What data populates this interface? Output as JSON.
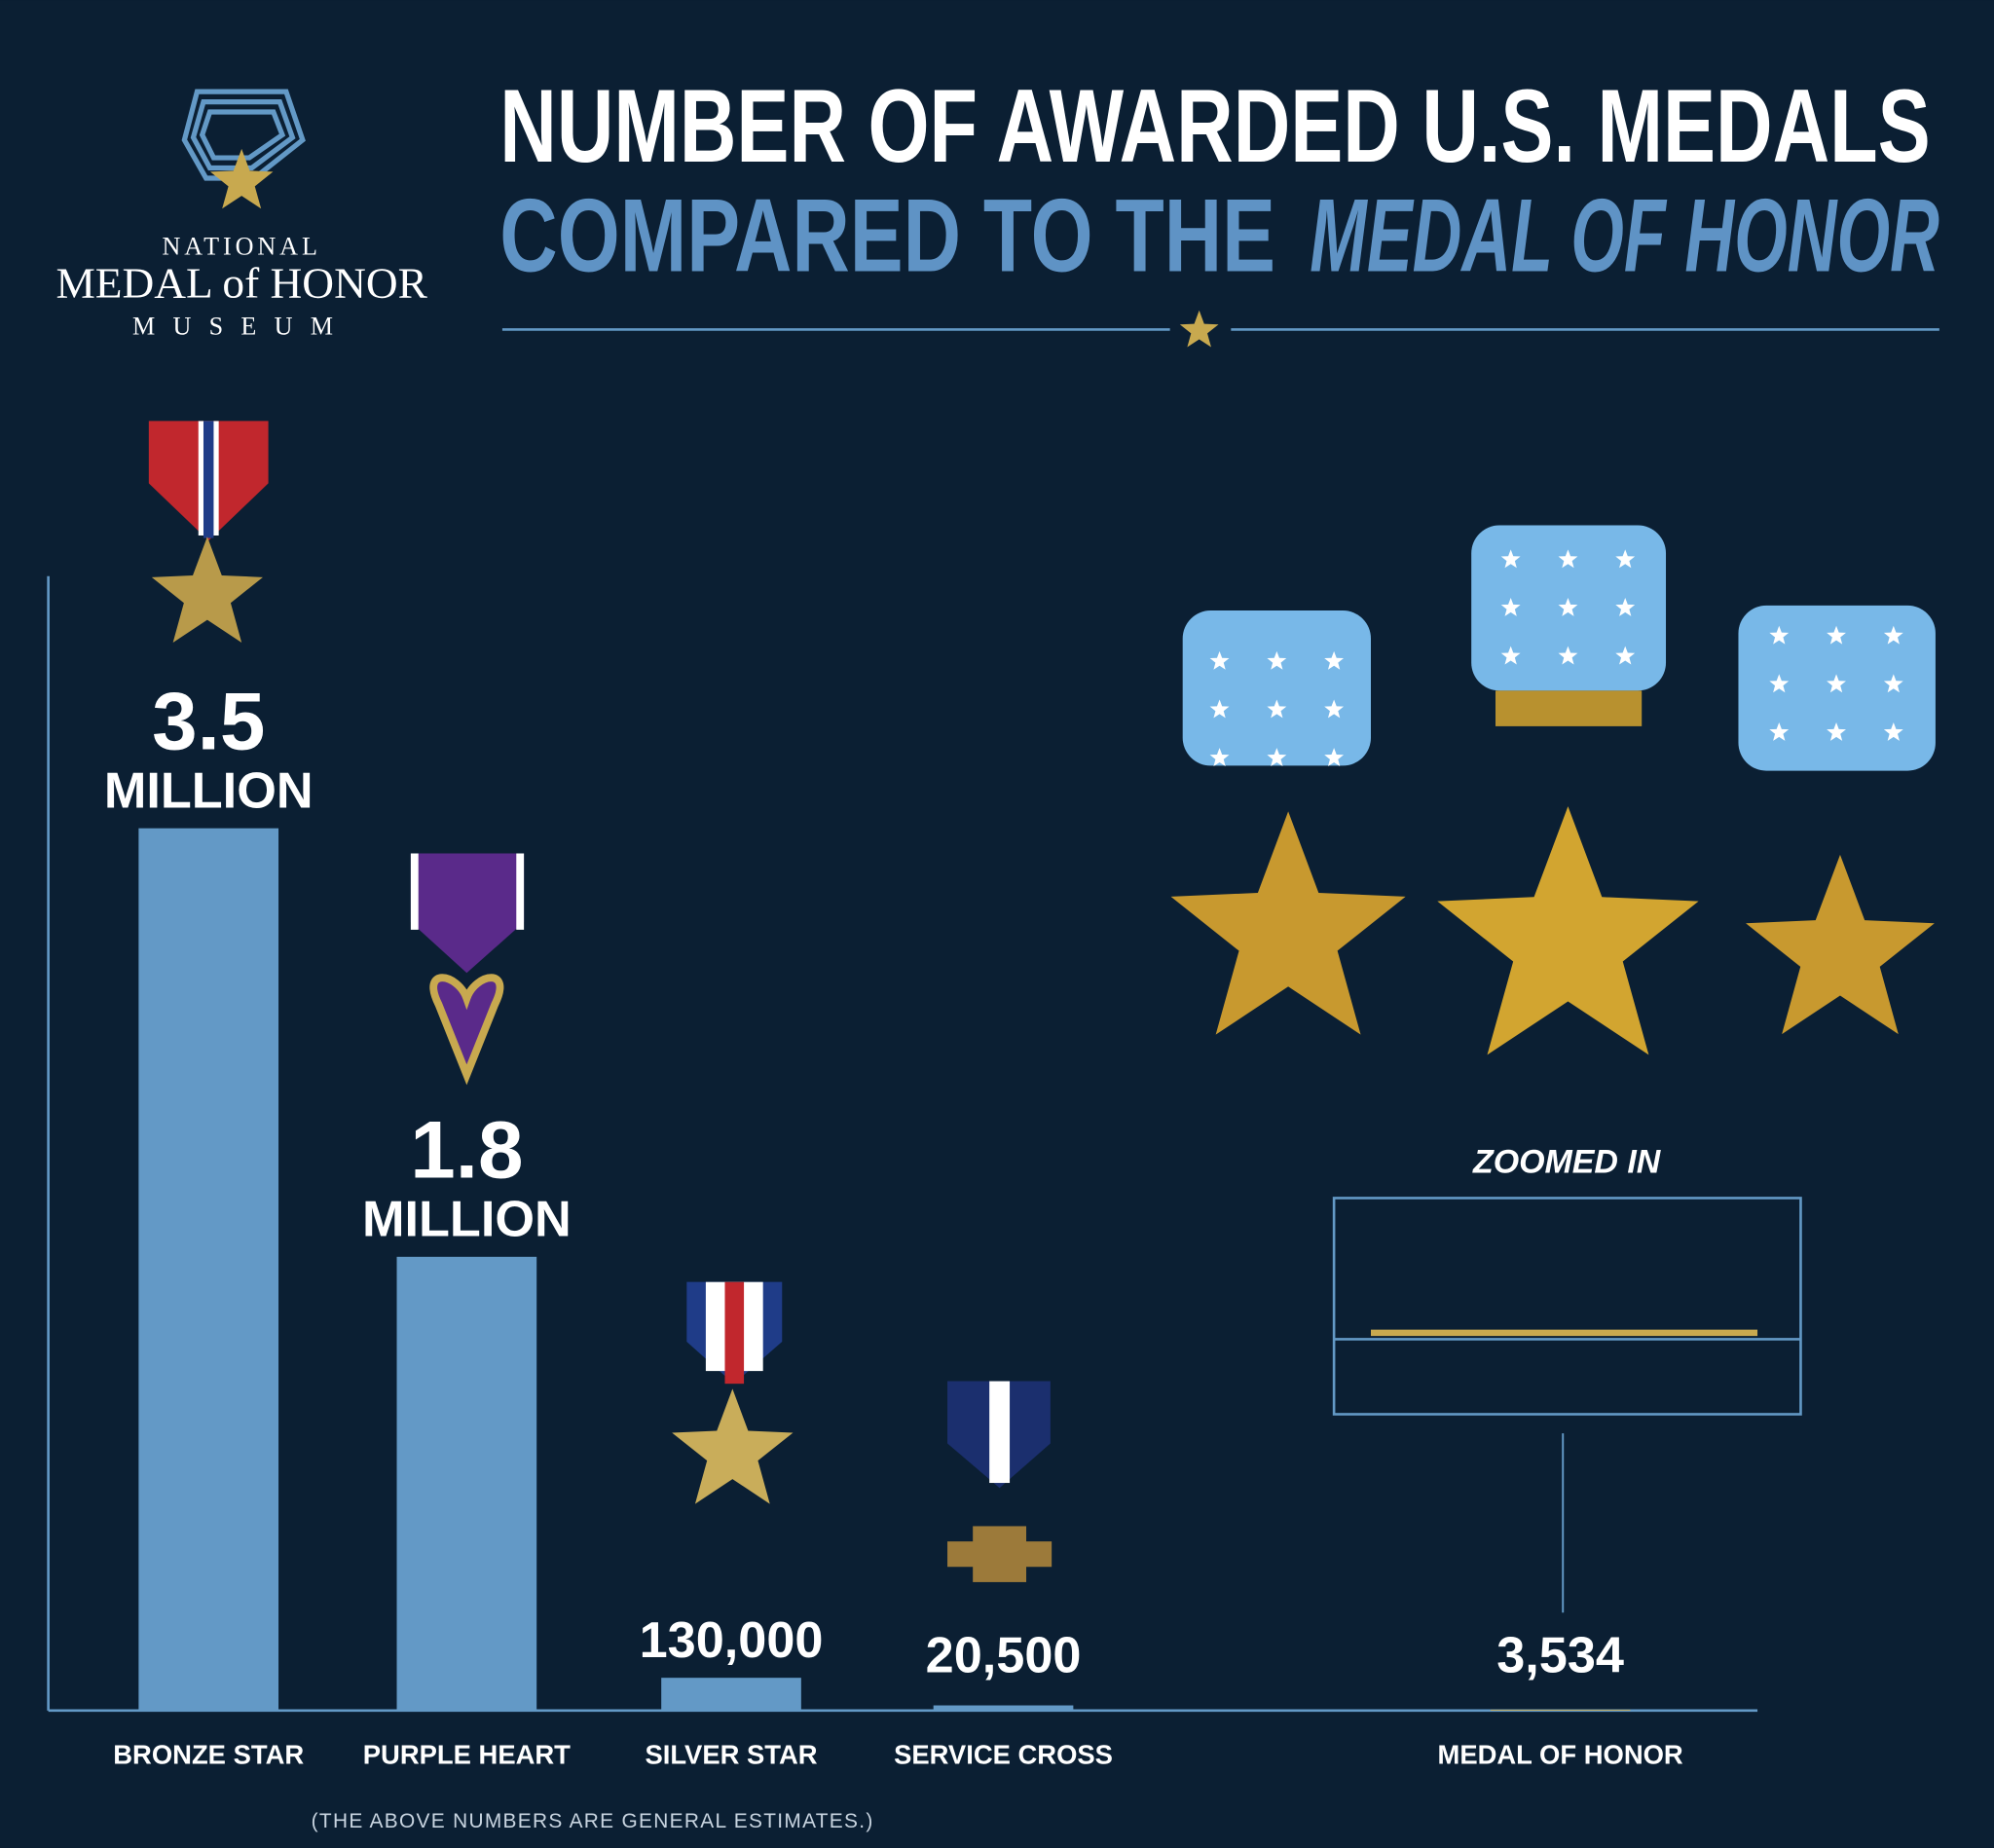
{
  "logo": {
    "line1": "NATIONAL",
    "name": "MEDAL of HONOR",
    "line3": "MUSEUM"
  },
  "chart_data": {
    "type": "bar",
    "title": "NUMBER OF AWARDED U.S. MEDALS",
    "subtitle": "COMPARED TO THE",
    "subtitle_emphasis": "MEDAL OF HONOR",
    "categories": [
      "BRONZE STAR",
      "PURPLE HEART",
      "SILVER STAR",
      "SERVICE CROSS",
      "MEDAL OF HONOR"
    ],
    "values": [
      3500000,
      1800000,
      130000,
      20500,
      3534
    ],
    "value_labels": [
      "3.5 MILLION",
      "1.8 MILLION",
      "130,000",
      "20,500",
      "3,534"
    ],
    "colors": [
      "#6399c6",
      "#6399c6",
      "#6399c6",
      "#6399c6",
      "#c8a94f"
    ],
    "ylim": [
      0,
      4500000
    ],
    "annotation": "ZOOMED IN",
    "note": "(THE ABOVE NUMBERS ARE GENERAL ESTIMATES.)"
  }
}
